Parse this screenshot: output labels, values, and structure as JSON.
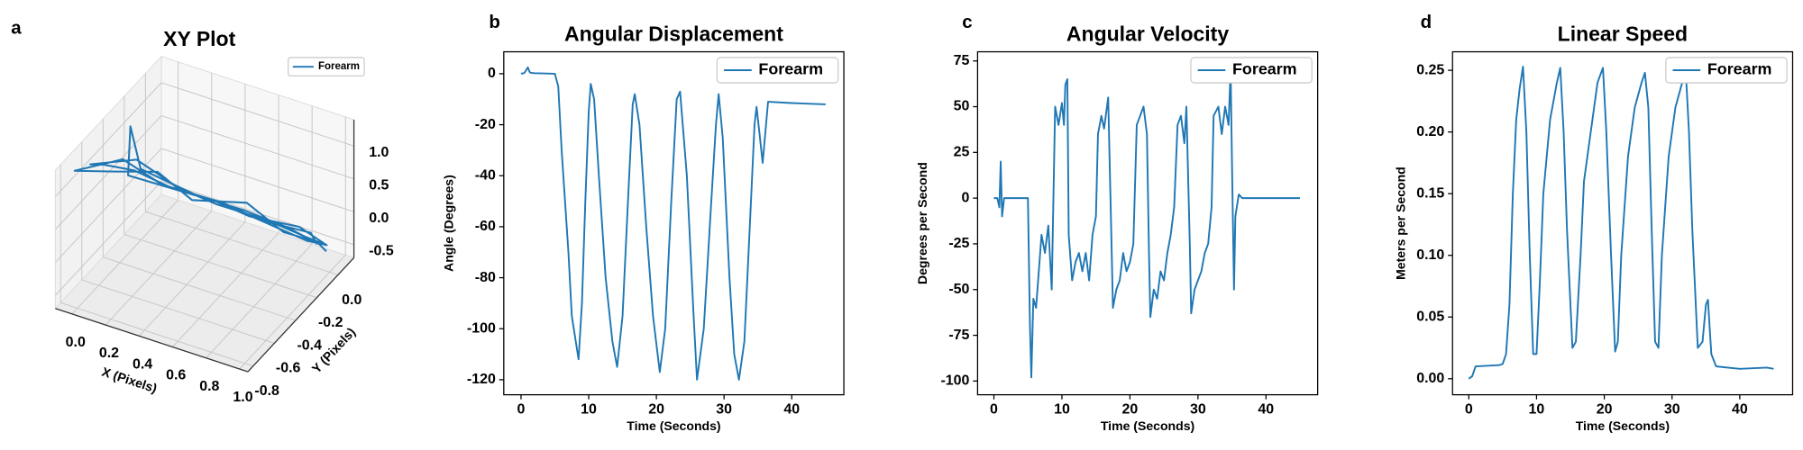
{
  "chart_data": [
    {
      "type": "line3d",
      "panel_label": "a",
      "title": "XY Plot",
      "x_label": "X (Pixels)",
      "y_label": "Y (Pixels)",
      "legend": "upper right",
      "xlim": [
        -0.1,
        1.05
      ],
      "ylim": [
        -0.85,
        0.15
      ],
      "zlim": [
        -0.7,
        1.4
      ],
      "xticks": [
        {
          "value": 0,
          "label": "0.0"
        },
        0.2,
        0.4,
        0.6,
        0.8,
        {
          "value": 1,
          "label": "1.0"
        }
      ],
      "yticks": [
        -0.8,
        -0.6,
        -0.4,
        -0.2,
        {
          "value": 0,
          "label": "0.0"
        }
      ],
      "zticks": [
        -0.5,
        {
          "value": 0,
          "label": "0.0"
        },
        0.5,
        {
          "value": 1,
          "label": "1.0"
        }
      ],
      "series": [
        {
          "name": "Forearm",
          "color": "#1f77b4",
          "x": [
            0.95,
            0.9,
            0.7,
            0.5,
            0.3,
            0.1,
            0.0,
            -0.05,
            0.1,
            0.3,
            0.5,
            0.7,
            0.9,
            0.95,
            0.8,
            0.6,
            0.4,
            0.2,
            0.05,
            -0.08,
            0.05,
            0.25,
            0.45,
            0.65,
            0.85,
            0.97,
            0.9,
            0.7,
            0.5,
            0.3,
            0.1,
            0.0,
            0.15,
            0.4,
            0.6,
            0.8,
            0.95,
            0.98
          ],
          "y": [
            -0.04,
            -0.02,
            -0.18,
            -0.22,
            -0.38,
            -0.42,
            -0.55,
            -0.6,
            -0.4,
            -0.32,
            -0.28,
            -0.12,
            -0.08,
            0.0,
            -0.12,
            -0.15,
            -0.35,
            -0.36,
            -0.5,
            -0.7,
            -0.45,
            -0.4,
            -0.25,
            -0.2,
            -0.05,
            0.02,
            -0.06,
            -0.16,
            -0.24,
            -0.36,
            -0.48,
            -0.3,
            -0.44,
            -0.3,
            -0.18,
            -0.1,
            -0.02,
            0.0
          ],
          "z": [
            -0.25,
            -0.15,
            0.15,
            0.32,
            0.65,
            0.82,
            1.05,
            1.1,
            0.95,
            0.55,
            0.4,
            0.05,
            -0.1,
            -0.3,
            -0.05,
            0.28,
            0.5,
            0.78,
            0.9,
            1.15,
            1.0,
            0.7,
            0.38,
            0.2,
            -0.05,
            -0.35,
            -0.2,
            0.1,
            0.35,
            0.6,
            0.85,
            1.2,
            0.92,
            0.48,
            0.22,
            0.0,
            -0.28,
            -0.4
          ]
        }
      ]
    },
    {
      "type": "line",
      "panel_label": "b",
      "title": "Angular Displacement",
      "x_label": "Time (Seconds)",
      "y_label": "Angle (Degrees)",
      "legend": "upper right",
      "xlim": [
        -2.55,
        47.7
      ],
      "ylim": [
        -125.9,
        8.6
      ],
      "xticks": [
        0,
        10,
        20,
        30,
        40
      ],
      "yticks": [
        0,
        -20,
        -40,
        -60,
        -80,
        -100,
        -120
      ],
      "x": [
        0,
        0.5,
        1,
        1.3,
        1.6,
        2,
        5,
        5.5,
        6,
        7,
        7.5,
        8.5,
        9,
        9.5,
        10,
        10.3,
        10.8,
        11.5,
        12.5,
        13.5,
        14.2,
        15,
        15.8,
        16.5,
        16.8,
        17.5,
        18.5,
        19.5,
        20.5,
        21.3,
        22.2,
        23,
        23.5,
        24.5,
        25.5,
        26,
        27,
        28,
        28.8,
        29.2,
        29.8,
        30.8,
        31.5,
        32.2,
        33,
        33.8,
        34.5,
        34.8,
        35.3,
        35.7,
        36.2,
        36.5,
        40,
        45
      ],
      "series": [
        {
          "name": "Forearm",
          "color": "#1f77b4",
          "values": [
            0,
            0.3,
            2.5,
            0.5,
            0.3,
            0.2,
            0,
            -5,
            -30,
            -70,
            -95,
            -112,
            -90,
            -50,
            -15,
            -4,
            -10,
            -40,
            -80,
            -105,
            -115,
            -95,
            -50,
            -12,
            -8,
            -20,
            -60,
            -95,
            -117,
            -100,
            -50,
            -10,
            -7,
            -40,
            -95,
            -120,
            -100,
            -55,
            -20,
            -8,
            -25,
            -80,
            -110,
            -120,
            -105,
            -60,
            -20,
            -13,
            -25,
            -35,
            -20,
            -11,
            -11.5,
            -12
          ]
        }
      ]
    },
    {
      "type": "line",
      "panel_label": "c",
      "title": "Angular Velocity",
      "x_label": "Time (Seconds)",
      "y_label": "Degrees per Second",
      "legend": "upper right",
      "xlim": [
        -2.4,
        47.6
      ],
      "ylim": [
        -107.5,
        80
      ],
      "xticks": [
        0,
        10,
        20,
        30,
        40
      ],
      "yticks": [
        -100,
        -75,
        -50,
        -25,
        0,
        25,
        50,
        75
      ],
      "x": [
        0,
        0.5,
        0.8,
        1,
        1.2,
        1.5,
        5,
        5.3,
        5.5,
        5.8,
        6.2,
        6.5,
        7,
        7.5,
        8,
        8.5,
        9,
        9.5,
        10,
        10.3,
        10.5,
        10.8,
        11,
        11.5,
        12,
        12.5,
        13,
        13.5,
        14,
        14.5,
        15,
        15.3,
        15.8,
        16.2,
        16.8,
        17.2,
        17.5,
        18,
        18.5,
        19,
        19.5,
        20,
        20.5,
        21,
        21.5,
        22,
        22.5,
        22.8,
        23,
        23.5,
        24,
        24.5,
        25,
        25.5,
        26,
        26.5,
        27,
        27.5,
        28,
        28.3,
        28.8,
        29,
        29.5,
        30,
        30.5,
        31,
        31.5,
        32,
        32.3,
        33,
        33.5,
        34,
        34.5,
        34.8,
        35,
        35.3,
        35.5,
        36,
        36.5,
        40,
        45
      ],
      "series": [
        {
          "name": "Forearm",
          "color": "#1f77b4",
          "values": [
            0,
            0,
            -5,
            20,
            -10,
            0,
            0,
            -70,
            -98,
            -55,
            -60,
            -45,
            -20,
            -30,
            -15,
            -50,
            50,
            40,
            52,
            40,
            62,
            65,
            -20,
            -45,
            -35,
            -30,
            -40,
            -30,
            -45,
            -20,
            -10,
            35,
            45,
            38,
            55,
            -10,
            -60,
            -50,
            -45,
            -30,
            -40,
            -35,
            -25,
            40,
            45,
            50,
            35,
            -30,
            -65,
            -50,
            -55,
            -40,
            -45,
            -30,
            -20,
            -5,
            40,
            45,
            30,
            50,
            -25,
            -63,
            -50,
            -45,
            -40,
            -30,
            -25,
            -5,
            45,
            50,
            35,
            50,
            40,
            70,
            20,
            -50,
            -10,
            2,
            0,
            0,
            0
          ]
        }
      ]
    },
    {
      "type": "line",
      "panel_label": "d",
      "title": "Linear Speed",
      "x_label": "Time (Seconds)",
      "y_label": "Meters per Second",
      "legend": "upper right",
      "xlim": [
        -2.4,
        47.8
      ],
      "ylim": [
        -0.013,
        0.265
      ],
      "xticks": [
        0,
        10,
        20,
        30,
        40
      ],
      "yticks": [
        {
          "value": 0,
          "label": "0.00"
        },
        {
          "value": 0.05,
          "label": "0.05"
        },
        {
          "value": 0.1,
          "label": "0.10"
        },
        {
          "value": 0.15,
          "label": "0.15"
        },
        {
          "value": 0.2,
          "label": "0.20"
        },
        {
          "value": 0.25,
          "label": "0.25"
        }
      ],
      "x": [
        0,
        0.5,
        1,
        4.5,
        5,
        5.5,
        6,
        6.5,
        7,
        7.5,
        8,
        8.5,
        9,
        9.5,
        10,
        10.5,
        11,
        12,
        13,
        13.5,
        14,
        14.5,
        15.3,
        15.8,
        16.5,
        17,
        18,
        19,
        19.8,
        20.3,
        21,
        21.6,
        22,
        22.5,
        23.5,
        24.5,
        25.5,
        26,
        26.5,
        27,
        27.5,
        28,
        28.5,
        29.5,
        30.5,
        31.5,
        32,
        32.5,
        33,
        33.8,
        34.5,
        35,
        35.3,
        35.8,
        36.5,
        40,
        44,
        45
      ],
      "series": [
        {
          "name": "Forearm",
          "color": "#1f77b4",
          "values": [
            0,
            0.002,
            0.01,
            0.011,
            0.012,
            0.02,
            0.06,
            0.15,
            0.21,
            0.235,
            0.253,
            0.2,
            0.1,
            0.02,
            0.02,
            0.08,
            0.15,
            0.21,
            0.24,
            0.252,
            0.2,
            0.12,
            0.025,
            0.03,
            0.1,
            0.16,
            0.2,
            0.24,
            0.252,
            0.2,
            0.1,
            0.022,
            0.03,
            0.1,
            0.18,
            0.22,
            0.24,
            0.248,
            0.22,
            0.12,
            0.03,
            0.025,
            0.1,
            0.18,
            0.22,
            0.24,
            0.252,
            0.2,
            0.12,
            0.025,
            0.03,
            0.06,
            0.064,
            0.02,
            0.01,
            0.008,
            0.009,
            0.008
          ]
        }
      ]
    }
  ]
}
